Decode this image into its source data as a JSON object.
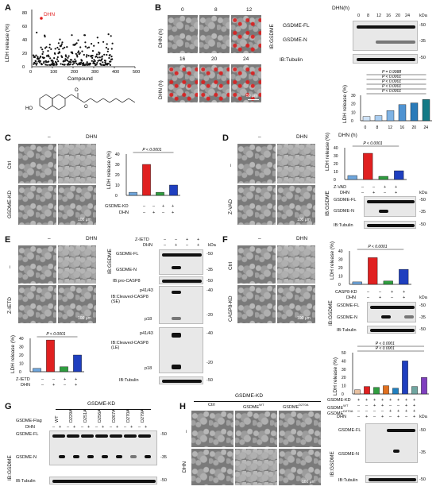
{
  "panels": {
    "A": {
      "letter": "A",
      "ylabel": "LDH release (%)",
      "xlabel": "Compound",
      "hit_label": "DHN",
      "yticks": [
        "0",
        "20",
        "40",
        "60",
        "80"
      ],
      "xticks": [
        "0",
        "100",
        "200",
        "300",
        "400",
        "500"
      ]
    },
    "B": {
      "letter": "B",
      "time_label": "DHN(h)",
      "row_label": "DHN (h)",
      "timepoints": [
        "0",
        "8",
        "12",
        "16",
        "20",
        "24"
      ],
      "blot_ib": "IB:GSDME",
      "fl": "GSDME-FL",
      "n": "GSDME-N",
      "tubulin": "IB:Tubulin",
      "kda": "kDa",
      "mw": [
        "-50",
        "-35",
        "-50"
      ],
      "chart_ylabel": "LDH release (%)",
      "chart_xlabel": "DHN (h)",
      "pvals": [
        "P < 0.0001",
        "P < 0.0001",
        "P < 0.0001",
        "P < 0.0001",
        "P = 0.9988"
      ],
      "xticks": [
        "0",
        "8",
        "12",
        "16",
        "20",
        "24"
      ],
      "yticks": [
        "0",
        "10",
        "20",
        "30"
      ],
      "scale": "50 μm"
    },
    "C": {
      "letter": "C",
      "col_neg": "–",
      "col_dhn": "DHN",
      "row1": "Ctrl",
      "row2": "GSDME-KD",
      "chart_ylabel": "LDH release (%)",
      "pval": "P < 0.0001",
      "row_a": "GSDME-KD",
      "row_b": "DHN",
      "signs_a": [
        "–",
        "–",
        "+",
        "+"
      ],
      "signs_b": [
        "–",
        "+",
        "–",
        "+"
      ],
      "yticks": [
        "0",
        "10",
        "20",
        "30",
        "40"
      ],
      "scale": "100 μm"
    },
    "D": {
      "letter": "D",
      "col_neg": "–",
      "col_dhn": "DHN",
      "row1": "–",
      "row2": "Z-VAD",
      "chart_ylabel": "LDH release (%)",
      "pval": "P < 0.0001",
      "row_a": "Z-VAD",
      "row_b": "DHN",
      "signs_a": [
        "–",
        "–",
        "+",
        "+"
      ],
      "signs_b": [
        "–",
        "+",
        "–",
        "+"
      ],
      "yticks": [
        "0",
        "10",
        "20",
        "30",
        "40"
      ],
      "blot_ib": "IB:GSDME",
      "fl": "GSDME-FL",
      "n": "GSDME-N",
      "tubulin": "IB:Tubulin",
      "kda": "kDa",
      "mw": [
        "-50",
        "-35",
        "-50"
      ],
      "scale": "100 μm"
    },
    "E": {
      "letter": "E",
      "col_neg": "–",
      "col_dhn": "DHN",
      "row1": "–",
      "row2": "Z-IETD",
      "chart_ylabel": "LDH release (%)",
      "pval": "P < 0.0001",
      "row_a": "Z-IETD",
      "row_b": "DHN",
      "signs_a": [
        "–",
        "–",
        "+",
        "+"
      ],
      "signs_b": [
        "–",
        "+",
        "–",
        "+"
      ],
      "yticks": [
        "0",
        "10",
        "20",
        "30",
        "40"
      ],
      "blot_top_a": "Z-IETD",
      "blot_top_b": "DHN",
      "blot_signs_a": [
        "–",
        "–",
        "+",
        "+"
      ],
      "blot_signs_b": [
        "–",
        "+",
        "–",
        "+"
      ],
      "blot_ib": "IB:GSDME",
      "fl": "GSDME-FL",
      "n": "GSDME-N",
      "procasp": "IB:pro-CASP8",
      "cleaved_se": "IB:Cleaved-CASP8 (SE)",
      "cleaved_le": "IB:Cleaved-CASP8 (LE)",
      "p4143": "p41/43",
      "p18": "p18",
      "tubulin": "IB:Tubulin",
      "kda": "kDa",
      "mw": [
        "-50",
        "-35",
        "-50",
        "-40",
        "-20",
        "-40",
        "-20",
        "-50"
      ],
      "scale": "100 μm"
    },
    "F": {
      "letter": "F",
      "col_neg": "–",
      "col_dhn": "DHN",
      "row1": "Ctrl",
      "row2": "CASP8-KD",
      "chart_ylabel": "LDH release (%)",
      "pval": "P < 0.0001",
      "row_a": "CASP8-KD",
      "row_b": "DHN",
      "signs_a": [
        "–",
        "–",
        "+",
        "+"
      ],
      "signs_b": [
        "–",
        "+",
        "–",
        "+"
      ],
      "yticks": [
        "0",
        "10",
        "20",
        "30",
        "40"
      ],
      "blot_ib": "IB:GSDME",
      "fl": "GSDME-FL",
      "n": "GSDME-N",
      "tubulin": "IB:Tubulin",
      "kda": "kDa",
      "mw": [
        "-50",
        "-35",
        "-50"
      ],
      "scale": "100 μm"
    },
    "G": {
      "letter": "G",
      "title": "GSDME-KD",
      "row_flag": "GSDME-Flag",
      "row_dhn": "DHN",
      "variants": [
        "WT",
        "D229A",
        "D251A",
        "D256A",
        "D267A",
        "D270A",
        "D279A"
      ],
      "blot_ib": "IB:GSDME",
      "fl": "GSDME-FL",
      "n": "GSDME-N",
      "tubulin": "IB:Tubulin",
      "mw": [
        "-50",
        "-35",
        "-50"
      ]
    },
    "H": {
      "letter": "H",
      "title": "GSDME-KD",
      "cols": [
        "Ctrl",
        "GSDME",
        "GSDME"
      ],
      "col_sup": [
        "",
        "WT",
        "D270A"
      ],
      "row1": "–",
      "row2": "DHN",
      "chart_ylabel": "LDH release (%)",
      "pvals": [
        "P < 0.0001",
        "P < 0.0001"
      ],
      "rows": [
        "GSDME-KD",
        "GSDME",
        "GSDME",
        "DHN"
      ],
      "row_sup": [
        "",
        "WT",
        "D270A",
        ""
      ],
      "yticks": [
        "0",
        "10",
        "20",
        "30",
        "40",
        "50"
      ],
      "blot_ib": "IB:GSDME",
      "fl": "GSDME-FL",
      "n": "GSDME-N",
      "tubulin": "IB:Tubulin",
      "kda": "kDa",
      "mw": [
        "-50",
        "-35",
        "-50"
      ],
      "scale": "100 μm"
    }
  },
  "chart_data": [
    {
      "type": "scatter",
      "panel": "A",
      "xlabel": "Compound",
      "ylabel": "LDH release (%)",
      "xlim": [
        0,
        500
      ],
      "ylim": [
        0,
        80
      ],
      "highlight": {
        "label": "DHN",
        "x": 100,
        "y": 70
      }
    },
    {
      "type": "bar",
      "panel": "B",
      "categories": [
        "0",
        "8",
        "12",
        "16",
        "20",
        "24"
      ],
      "values": [
        5,
        6,
        12,
        19,
        21,
        25
      ],
      "colors": [
        "#cfe3f7",
        "#a9cdf0",
        "#7fb3e4",
        "#4f93d2",
        "#2a7bb9",
        "#137a86"
      ],
      "ylabel": "LDH release (%)",
      "xlabel": "DHN (h)",
      "ylim": [
        0,
        30
      ]
    },
    {
      "type": "bar",
      "panel": "C",
      "values": [
        3,
        30,
        3,
        10
      ],
      "colors": [
        "#6fa6dc",
        "#e02020",
        "#2f9d3f",
        "#1f3fbf"
      ],
      "ylim": [
        0,
        40
      ]
    },
    {
      "type": "bar",
      "panel": "D",
      "values": [
        5,
        33,
        4,
        11
      ],
      "colors": [
        "#6fa6dc",
        "#e02020",
        "#2f9d3f",
        "#1f3fbf"
      ],
      "ylim": [
        0,
        40
      ]
    },
    {
      "type": "bar",
      "panel": "E",
      "values": [
        4,
        38,
        6,
        20
      ],
      "colors": [
        "#6fa6dc",
        "#e02020",
        "#2f9d3f",
        "#1f3fbf"
      ],
      "ylim": [
        0,
        40
      ]
    },
    {
      "type": "bar",
      "panel": "F",
      "values": [
        3,
        32,
        4,
        18
      ],
      "colors": [
        "#6fa6dc",
        "#e02020",
        "#2f9d3f",
        "#1f3fbf"
      ],
      "ylim": [
        0,
        40
      ]
    },
    {
      "type": "bar",
      "panel": "H",
      "values": [
        5,
        9,
        8,
        10,
        7,
        40,
        9,
        20
      ],
      "colors": [
        "#e8c0a0",
        "#e02020",
        "#2f9d3f",
        "#e07020",
        "#1f7fbf",
        "#1f3fbf",
        "#6fa6a0",
        "#7f3fbf"
      ],
      "ylim": [
        0,
        50
      ]
    }
  ]
}
